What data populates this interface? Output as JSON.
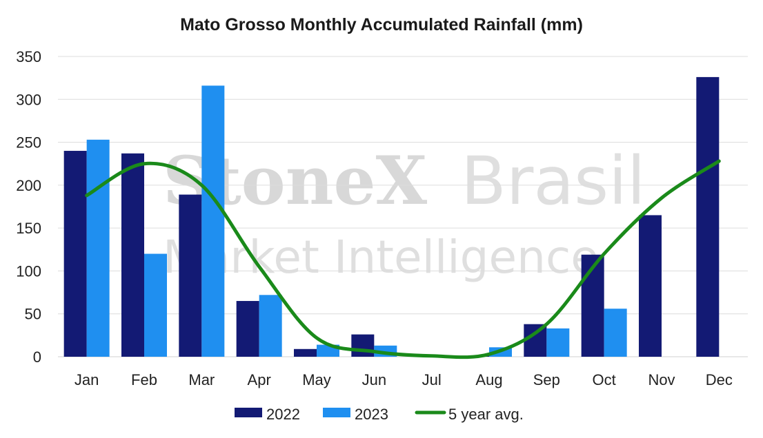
{
  "chart_data": {
    "type": "bar",
    "title": "Mato Grosso Monthly Accumulated Rainfall (mm)",
    "xlabel": "",
    "ylabel": "",
    "ylim": [
      0,
      350
    ],
    "yticks": [
      0,
      50,
      100,
      150,
      200,
      250,
      300,
      350
    ],
    "categories": [
      "Jan",
      "Feb",
      "Mar",
      "Apr",
      "May",
      "Jun",
      "Jul",
      "Aug",
      "Sep",
      "Oct",
      "Nov",
      "Dec"
    ],
    "series": [
      {
        "name": "2022",
        "kind": "bar",
        "color": "#131a74",
        "values": [
          240,
          237,
          189,
          65,
          9,
          26,
          0,
          1,
          38,
          119,
          165,
          326
        ]
      },
      {
        "name": "2023",
        "kind": "bar",
        "color": "#1f8ff0",
        "values": [
          253,
          120,
          316,
          72,
          14,
          13,
          0,
          11,
          33,
          56,
          null,
          null
        ]
      },
      {
        "name": "5 year avg.",
        "kind": "line",
        "color": "#1a8a1a",
        "values": [
          188,
          225,
          200,
          105,
          22,
          6,
          1,
          3,
          38,
          120,
          185,
          228
        ]
      }
    ],
    "legend_position": "bottom-center",
    "grid": true
  },
  "watermark": {
    "line1": "StoneX",
    "line2": "Brasil",
    "line3": "Market Intelligence"
  }
}
